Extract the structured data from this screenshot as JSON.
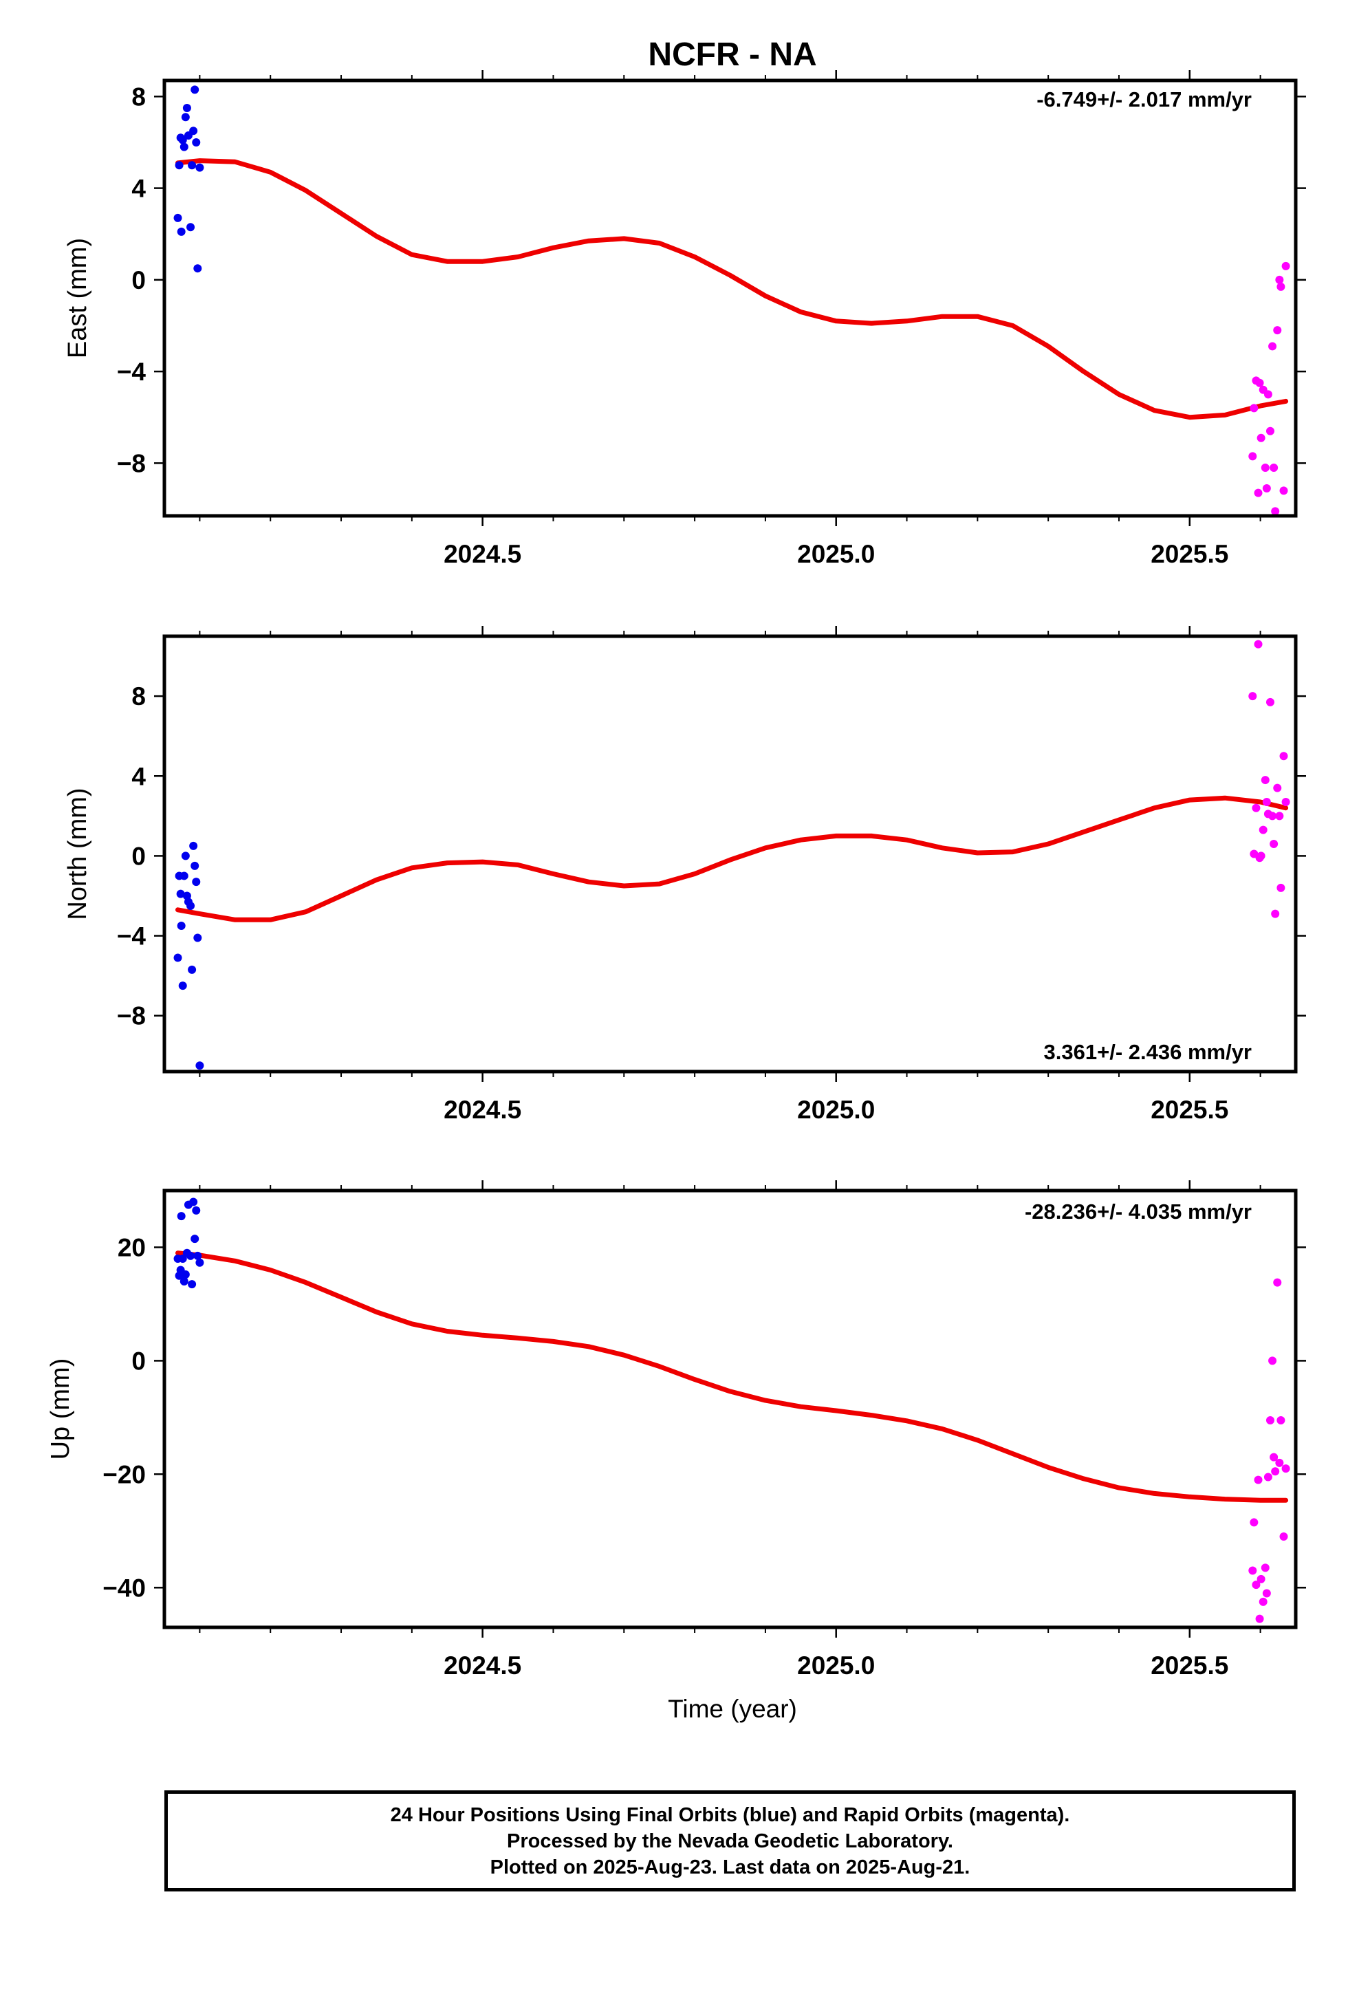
{
  "title": "NCFR - NA",
  "xlabel": "Time (year)",
  "footer": {
    "line1": "24 Hour Positions Using Final Orbits (blue) and Rapid Orbits (magenta).",
    "line2": "Processed by the Nevada Geodetic Laboratory.",
    "line3": "Plotted on 2025-Aug-23. Last data on 2025-Aug-21."
  },
  "colors": {
    "final": "#0000ee",
    "rapid": "#ff00ff",
    "model": "#ee0000"
  },
  "chart_data": [
    {
      "type": "scatter",
      "ylabel": "East (mm)",
      "rate_label": "-6.749+/- 2.017 mm/yr",
      "xlim": [
        2024.05,
        2025.65
      ],
      "ylim": [
        -10.3,
        8.7
      ],
      "x_ticks": [
        2024.5,
        2025.0,
        2025.5
      ],
      "x_tick_labels": [
        "2024.5",
        "2025.0",
        "2025.5"
      ],
      "y_ticks": [
        8,
        4,
        0,
        -4,
        -8
      ],
      "y_tick_labels": [
        "8",
        "4",
        "0",
        "−4",
        "−8"
      ],
      "final": {
        "x": [
          2024.069,
          2024.071,
          2024.073,
          2024.074,
          2024.076,
          2024.078,
          2024.08,
          2024.082,
          2024.084,
          2024.087,
          2024.089,
          2024.091,
          2024.093,
          2024.095,
          2024.097,
          2024.1
        ],
        "y": [
          2.7,
          5.0,
          6.2,
          2.1,
          6.1,
          5.8,
          7.1,
          7.5,
          6.3,
          2.3,
          5.0,
          6.5,
          8.3,
          6.0,
          0.5,
          4.9
        ]
      },
      "rapid": {
        "x": [
          2025.589,
          2025.591,
          2025.594,
          2025.597,
          2025.599,
          2025.601,
          2025.604,
          2025.607,
          2025.609,
          2025.611,
          2025.614,
          2025.617,
          2025.619,
          2025.621,
          2025.624,
          2025.627,
          2025.629,
          2025.633,
          2025.636
        ],
        "y": [
          -7.7,
          -5.6,
          -4.4,
          -9.3,
          -4.5,
          -6.9,
          -4.8,
          -8.2,
          -9.1,
          -5.0,
          -6.6,
          -2.9,
          -8.2,
          -10.1,
          -2.2,
          0.0,
          -0.3,
          -9.2,
          0.6
        ]
      },
      "model": {
        "x": [
          2024.069,
          2024.1,
          2024.15,
          2024.2,
          2024.25,
          2024.3,
          2024.35,
          2024.4,
          2024.45,
          2024.5,
          2024.55,
          2024.6,
          2024.65,
          2024.7,
          2024.75,
          2024.8,
          2024.85,
          2024.9,
          2024.95,
          2025.0,
          2025.05,
          2025.1,
          2025.15,
          2025.2,
          2025.25,
          2025.3,
          2025.35,
          2025.4,
          2025.45,
          2025.5,
          2025.55,
          2025.6,
          2025.636
        ],
        "y": [
          5.1,
          5.2,
          5.15,
          4.7,
          3.9,
          2.9,
          1.9,
          1.1,
          0.8,
          0.8,
          1.0,
          1.4,
          1.7,
          1.8,
          1.6,
          1.0,
          0.2,
          -0.7,
          -1.4,
          -1.8,
          -1.9,
          -1.8,
          -1.6,
          -1.6,
          -2.0,
          -2.9,
          -4.0,
          -5.0,
          -5.7,
          -6.0,
          -5.9,
          -5.5,
          -5.3
        ]
      }
    },
    {
      "type": "scatter",
      "ylabel": "North (mm)",
      "rate_label": "3.361+/- 2.436 mm/yr",
      "xlim": [
        2024.05,
        2025.65
      ],
      "ylim": [
        -10.8,
        11.0
      ],
      "x_ticks": [
        2024.5,
        2025.0,
        2025.5
      ],
      "x_tick_labels": [
        "2024.5",
        "2025.0",
        "2025.5"
      ],
      "y_ticks": [
        8,
        4,
        0,
        -4,
        -8
      ],
      "y_tick_labels": [
        "8",
        "4",
        "0",
        "−4",
        "−8"
      ],
      "final": {
        "x": [
          2024.069,
          2024.071,
          2024.073,
          2024.074,
          2024.076,
          2024.078,
          2024.08,
          2024.082,
          2024.084,
          2024.087,
          2024.089,
          2024.091,
          2024.093,
          2024.095,
          2024.097,
          2024.1
        ],
        "y": [
          -5.1,
          -1.0,
          -1.9,
          -3.5,
          -6.5,
          -1.0,
          0.0,
          -2.0,
          -2.3,
          -2.5,
          -5.7,
          0.5,
          -0.5,
          -1.3,
          -4.1,
          -10.5
        ]
      },
      "rapid": {
        "x": [
          2025.589,
          2025.591,
          2025.594,
          2025.597,
          2025.599,
          2025.601,
          2025.604,
          2025.607,
          2025.609,
          2025.611,
          2025.614,
          2025.617,
          2025.619,
          2025.621,
          2025.624,
          2025.627,
          2025.629,
          2025.633,
          2025.636
        ],
        "y": [
          8.0,
          0.1,
          2.4,
          10.6,
          -0.1,
          0.0,
          1.3,
          3.8,
          2.7,
          2.1,
          7.7,
          2.0,
          0.6,
          -2.9,
          3.4,
          2.0,
          -1.6,
          5.0,
          2.7
        ]
      },
      "model": {
        "x": [
          2024.069,
          2024.1,
          2024.15,
          2024.2,
          2024.25,
          2024.3,
          2024.35,
          2024.4,
          2024.45,
          2024.5,
          2024.55,
          2024.6,
          2024.65,
          2024.7,
          2024.75,
          2024.8,
          2024.85,
          2024.9,
          2024.95,
          2025.0,
          2025.05,
          2025.1,
          2025.15,
          2025.2,
          2025.25,
          2025.3,
          2025.35,
          2025.4,
          2025.45,
          2025.5,
          2025.55,
          2025.6,
          2025.636
        ],
        "y": [
          -2.7,
          -2.9,
          -3.2,
          -3.2,
          -2.8,
          -2.0,
          -1.2,
          -0.6,
          -0.35,
          -0.3,
          -0.45,
          -0.9,
          -1.3,
          -1.5,
          -1.4,
          -0.9,
          -0.2,
          0.4,
          0.8,
          1.0,
          1.0,
          0.8,
          0.4,
          0.15,
          0.2,
          0.6,
          1.2,
          1.8,
          2.4,
          2.8,
          2.9,
          2.7,
          2.4
        ]
      }
    },
    {
      "type": "scatter",
      "ylabel": "Up (mm)",
      "rate_label": "-28.236+/- 4.035 mm/yr",
      "xlim": [
        2024.05,
        2025.65
      ],
      "ylim": [
        -47.0,
        30.0
      ],
      "x_ticks": [
        2024.5,
        2025.0,
        2025.5
      ],
      "x_tick_labels": [
        "2024.5",
        "2025.0",
        "2025.5"
      ],
      "y_ticks": [
        20,
        0,
        -20,
        -40
      ],
      "y_tick_labels": [
        "20",
        "0",
        "−20",
        "−40"
      ],
      "final": {
        "x": [
          2024.069,
          2024.071,
          2024.073,
          2024.074,
          2024.076,
          2024.078,
          2024.08,
          2024.082,
          2024.084,
          2024.087,
          2024.089,
          2024.091,
          2024.093,
          2024.095,
          2024.097,
          2024.1
        ],
        "y": [
          18.0,
          15.0,
          16.0,
          25.5,
          18.0,
          14.0,
          15.2,
          19.0,
          27.5,
          18.5,
          13.5,
          28.0,
          21.5,
          26.5,
          18.5,
          17.3
        ]
      },
      "rapid": {
        "x": [
          2025.589,
          2025.591,
          2025.594,
          2025.597,
          2025.599,
          2025.601,
          2025.604,
          2025.607,
          2025.609,
          2025.611,
          2025.614,
          2025.617,
          2025.619,
          2025.621,
          2025.624,
          2025.627,
          2025.629,
          2025.633,
          2025.636
        ],
        "y": [
          -37.0,
          -28.5,
          -39.5,
          -21.0,
          -45.5,
          -38.5,
          -42.5,
          -36.5,
          -41.0,
          -20.5,
          -10.5,
          0.0,
          -17.0,
          -19.5,
          13.8,
          -18.0,
          -10.5,
          -31.0,
          -19.0
        ]
      },
      "model": {
        "x": [
          2024.069,
          2024.1,
          2024.15,
          2024.2,
          2024.25,
          2024.3,
          2024.35,
          2024.4,
          2024.45,
          2024.5,
          2024.55,
          2024.6,
          2024.65,
          2024.7,
          2024.75,
          2024.8,
          2024.85,
          2024.9,
          2024.95,
          2025.0,
          2025.05,
          2025.1,
          2025.15,
          2025.2,
          2025.25,
          2025.3,
          2025.35,
          2025.4,
          2025.45,
          2025.5,
          2025.55,
          2025.6,
          2025.636
        ],
        "y": [
          19.0,
          18.6,
          17.6,
          16.0,
          13.8,
          11.2,
          8.6,
          6.5,
          5.2,
          4.5,
          4.0,
          3.4,
          2.5,
          1.0,
          -1.0,
          -3.3,
          -5.4,
          -7.0,
          -8.1,
          -8.8,
          -9.6,
          -10.6,
          -12.0,
          -14.0,
          -16.4,
          -18.8,
          -20.8,
          -22.4,
          -23.4,
          -24.0,
          -24.4,
          -24.6,
          -24.6
        ]
      }
    }
  ]
}
